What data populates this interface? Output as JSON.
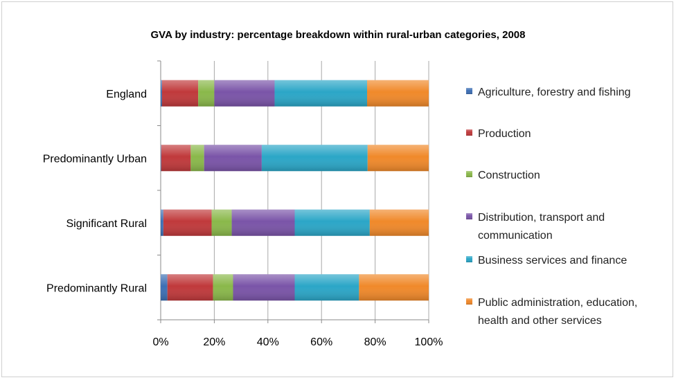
{
  "chart_data": {
    "type": "bar",
    "orientation": "horizontal",
    "stacked": true,
    "title": "GVA by industry: percentage breakdown within rural-urban categories, 2008",
    "xlabel": "",
    "ylabel": "",
    "xlim": [
      0,
      100
    ],
    "x_ticks": [
      "0%",
      "20%",
      "40%",
      "60%",
      "80%",
      "100%"
    ],
    "grid": "vertical",
    "legend_position": "right",
    "categories": [
      "England",
      "Predominantly Urban",
      "Significant Rural",
      "Predominantly Rural"
    ],
    "series": [
      {
        "name": "Agriculture, forestry and fishing",
        "color": "#3d6fb4",
        "values": [
          0.5,
          0.2,
          1.0,
          2.5
        ]
      },
      {
        "name": "Production",
        "color": "#c0393b",
        "values": [
          13.5,
          11.0,
          18.0,
          17.0
        ]
      },
      {
        "name": "Construction",
        "color": "#8ab84a",
        "values": [
          6.0,
          5.0,
          7.5,
          7.5
        ]
      },
      {
        "name": "Distribution, transport and communication",
        "color": "#7a54a8",
        "values": [
          22.5,
          21.5,
          23.5,
          23.0
        ]
      },
      {
        "name": "Business services and finance",
        "color": "#2ba6c7",
        "values": [
          34.5,
          39.5,
          28.0,
          24.0
        ]
      },
      {
        "name": "Public administration, education, health and other services",
        "color": "#f0892a",
        "values": [
          23.0,
          22.8,
          22.0,
          26.0
        ]
      }
    ],
    "legend_lines": [
      [
        "Agriculture, forestry and fishing"
      ],
      [
        "Production"
      ],
      [
        "Construction"
      ],
      [
        "Distribution, transport and",
        "communication"
      ],
      [
        "Business services and finance"
      ],
      [
        "Public administration, education,",
        "health and other services"
      ]
    ]
  }
}
